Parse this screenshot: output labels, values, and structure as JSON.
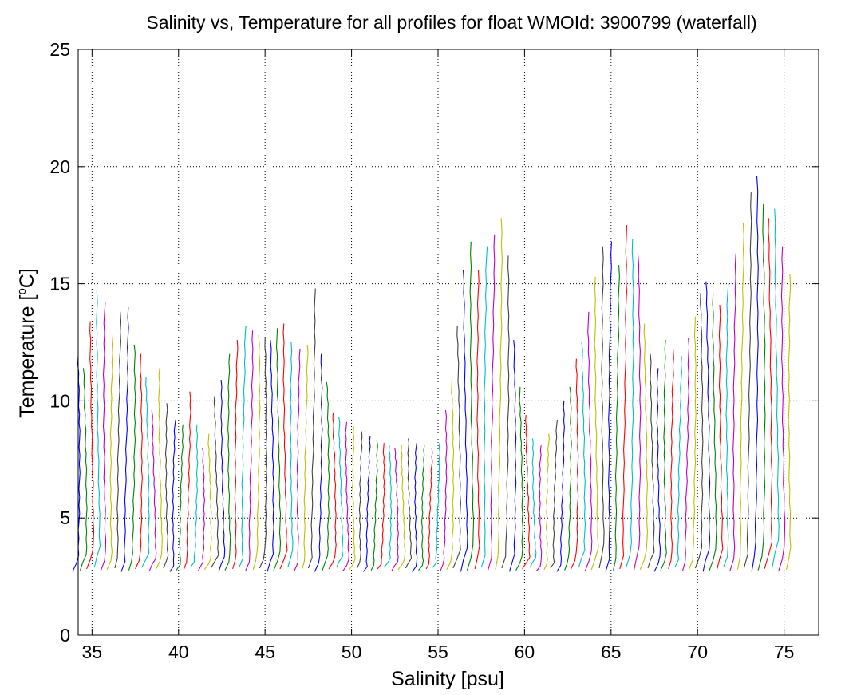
{
  "chart_data": {
    "type": "line",
    "title": "Salinity vs, Temperature for all profiles for float WMOId: 3900799 (waterfall)",
    "xlabel": "Salinity [psu]",
    "ylabel_main": "Temperature [",
    "ylabel_sup": "o",
    "ylabel_end": "C]",
    "xlim": [
      34.2,
      77
    ],
    "ylim": [
      0,
      25
    ],
    "xticks": [
      35,
      40,
      45,
      50,
      55,
      60,
      65,
      70,
      75
    ],
    "yticks": [
      0,
      5,
      10,
      15,
      20,
      25
    ],
    "grid": true,
    "colors": [
      "#0000ff",
      "#008000",
      "#ff0000",
      "#00bfbf",
      "#bf00bf",
      "#bfbf00",
      "#404040"
    ],
    "waterfall": {
      "offset_psu": 0.4,
      "base_salinity": 34.2,
      "profile_count": 104,
      "bottom_temp_c": 2.8,
      "surface_temp_c": [
        11.9,
        11.4,
        13.4,
        14.7,
        14.2,
        12.8,
        13.8,
        14.0,
        12.4,
        12.0,
        11.0,
        9.6,
        11.4,
        9.9,
        9.2,
        9.0,
        10.4,
        9.0,
        8.0,
        8.6,
        10.2,
        10.9,
        12.0,
        12.6,
        13.2,
        13.0,
        12.8,
        12.7,
        12.6,
        13.1,
        13.3,
        12.5,
        12.2,
        12.4,
        14.8,
        12.0,
        10.8,
        9.5,
        9.3,
        9.1,
        8.9,
        8.7,
        8.5,
        8.3,
        8.2,
        8.1,
        8.0,
        8.1,
        8.4,
        8.2,
        8.1,
        8.0,
        8.2,
        9.6,
        11.0,
        13.2,
        15.6,
        16.8,
        15.6,
        16.6,
        17.1,
        17.8,
        16.2,
        12.6,
        10.6,
        9.4,
        8.4,
        8.1,
        8.6,
        9.2,
        10.0,
        10.6,
        11.8,
        12.5,
        13.8,
        15.3,
        16.6,
        16.8,
        15.8,
        17.5,
        16.9,
        16.3,
        13.3,
        12.0,
        11.4,
        12.6,
        12.2,
        11.9,
        12.7,
        13.6,
        14.6,
        15.1,
        14.6,
        14.1,
        15.0,
        16.3,
        17.6,
        18.9,
        19.6,
        18.4,
        17.8,
        18.2,
        16.6,
        15.4
      ]
    }
  }
}
